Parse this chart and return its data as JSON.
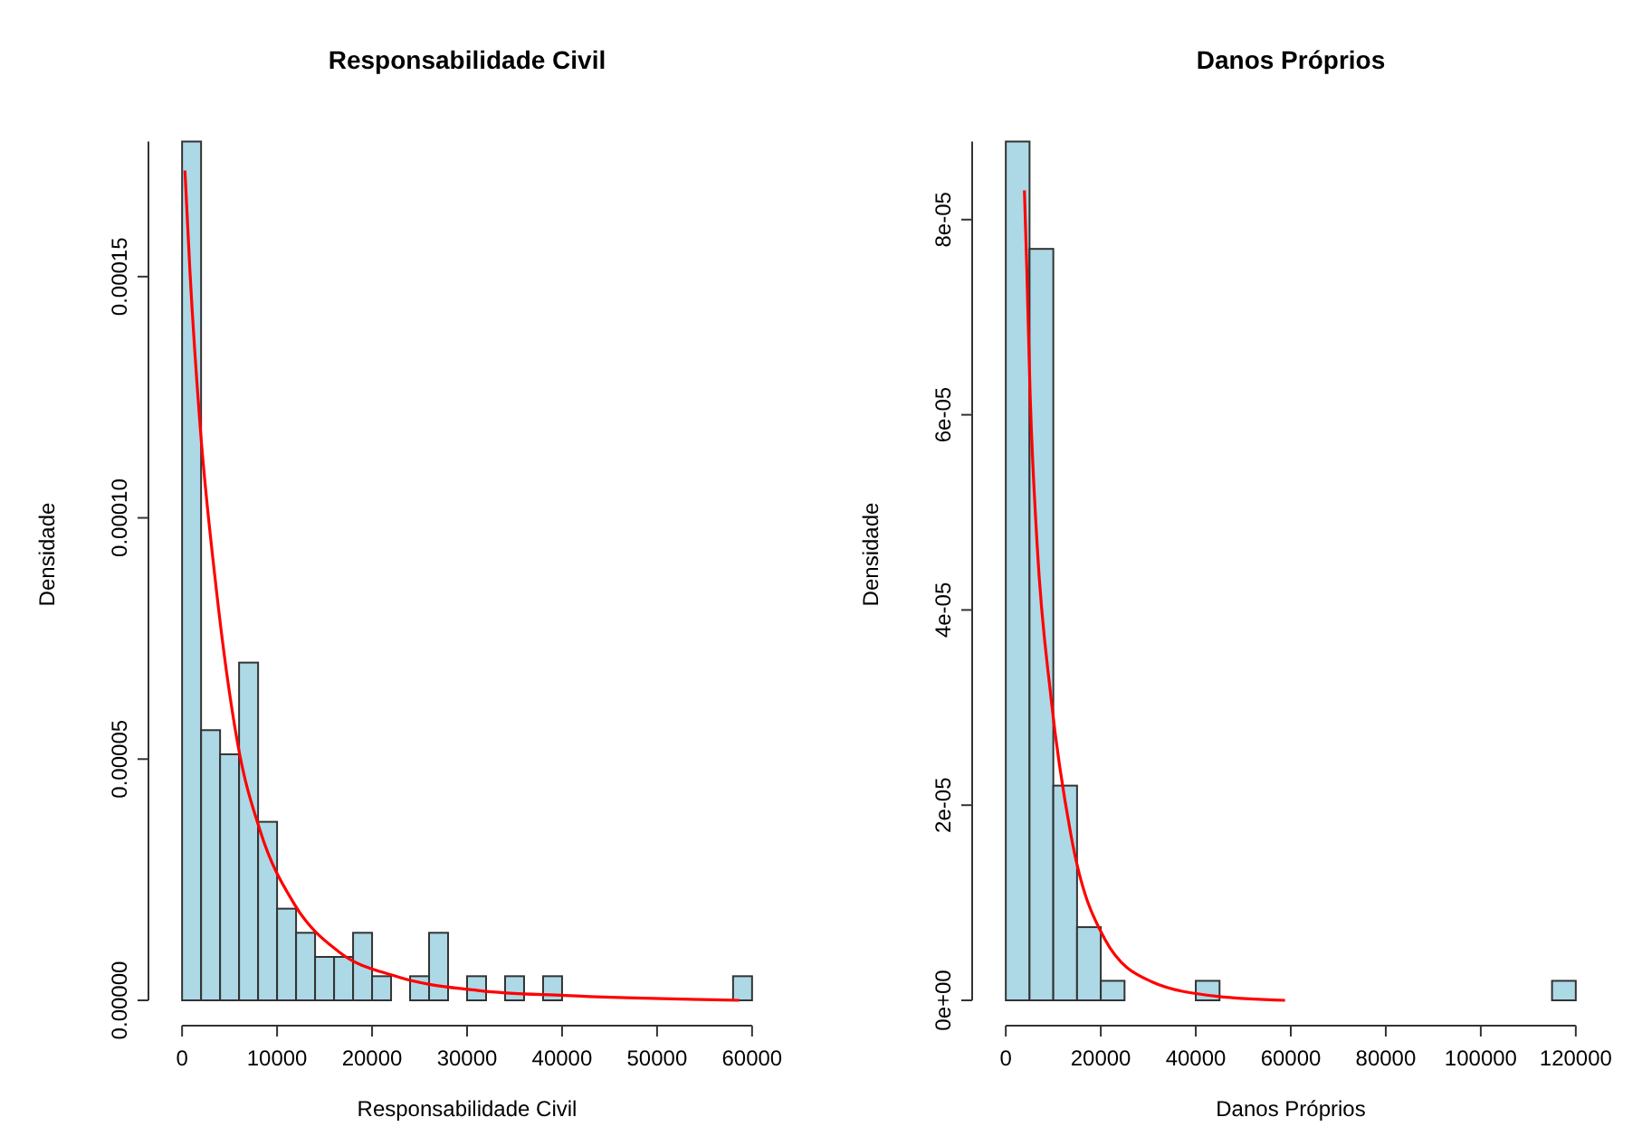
{
  "chart_data": [
    {
      "type": "histogram",
      "title": "Responsabilidade Civil",
      "xlabel": "Responsabilidade Civil",
      "ylabel": "Densidade",
      "color": "#add8e6",
      "bins": [
        0,
        2000,
        4000,
        6000,
        8000,
        10000,
        12000,
        14000,
        16000,
        18000,
        20000,
        22000,
        24000,
        26000,
        28000,
        30000,
        32000,
        34000,
        36000,
        38000,
        40000,
        42000,
        44000,
        46000,
        48000,
        50000,
        52000,
        54000,
        56000,
        58000,
        60000
      ],
      "values": [
        0.000178,
        5.6e-05,
        5.1e-05,
        7e-05,
        3.7e-05,
        1.9e-05,
        1.4e-05,
        9e-06,
        9e-06,
        1.4e-05,
        5e-06,
        0,
        5e-06,
        1.4e-05,
        0,
        5e-06,
        0,
        5e-06,
        0,
        5e-06,
        0,
        0,
        0,
        0,
        0,
        0,
        0,
        0,
        0,
        5e-06
      ],
      "series": [
        {
          "type": "line",
          "color": "#ff0000",
          "x": [
            300,
            830,
            1900,
            3500,
            5870,
            8240,
            11800,
            16550,
            22470,
            31370,
            40270,
            58660
          ],
          "values": [
            0.000172,
            0.000151,
            0.000119,
            8.7e-05,
            5.3e-05,
            3.5e-05,
            2e-05,
            1e-05,
            5e-06,
            2e-06,
            1e-06,
            0
          ]
        }
      ],
      "xlim": [
        0,
        60000
      ],
      "xticks": [
        0,
        10000,
        20000,
        30000,
        40000,
        50000,
        60000
      ],
      "ylim": [
        0,
        0.000178
      ],
      "yticks": [
        {
          "value": 0,
          "label": "0.00000"
        },
        {
          "value": 5e-05,
          "label": "0.00005"
        },
        {
          "value": 0.0001,
          "label": "0.00010"
        },
        {
          "value": 0.00015,
          "label": "0.00015"
        }
      ],
      "grid": false
    },
    {
      "type": "histogram",
      "title": "Danos Próprios",
      "xlabel": "Danos Próprios",
      "ylabel": "Densidade",
      "color": "#add8e6",
      "bins": [
        0,
        5000,
        10000,
        15000,
        20000,
        25000,
        30000,
        35000,
        40000,
        45000,
        50000,
        55000,
        60000,
        65000,
        70000,
        75000,
        80000,
        85000,
        90000,
        95000,
        100000,
        105000,
        110000,
        115000,
        120000
      ],
      "values": [
        8.8e-05,
        7.7e-05,
        2.2e-05,
        7.5e-06,
        2e-06,
        0,
        0,
        0,
        2e-06,
        0,
        0,
        0,
        0,
        0,
        0,
        0,
        0,
        0,
        0,
        0,
        0,
        0,
        0,
        2e-06
      ],
      "series": [
        {
          "type": "line",
          "color": "#ff0000",
          "x": [
            3920,
            4420,
            5130,
            6560,
            9520,
            13690,
            20810,
            30290,
            44550,
            58800
          ],
          "values": [
            8.3e-05,
            7.5e-05,
            6.2e-05,
            4.7e-05,
            3.1e-05,
            1.7e-05,
            6.3e-06,
            2e-06,
            4e-07,
            0
          ]
        }
      ],
      "xlim": [
        0,
        120000
      ],
      "xticks": [
        0,
        20000,
        40000,
        60000,
        80000,
        100000,
        120000
      ],
      "ylim": [
        0,
        8.8e-05
      ],
      "yticks": [
        {
          "value": 0,
          "label": "0e+00"
        },
        {
          "value": 2e-05,
          "label": "2e-05"
        },
        {
          "value": 4e-05,
          "label": "4e-05"
        },
        {
          "value": 6e-05,
          "label": "6e-05"
        },
        {
          "value": 8e-05,
          "label": "8e-05"
        }
      ],
      "grid": false
    }
  ]
}
